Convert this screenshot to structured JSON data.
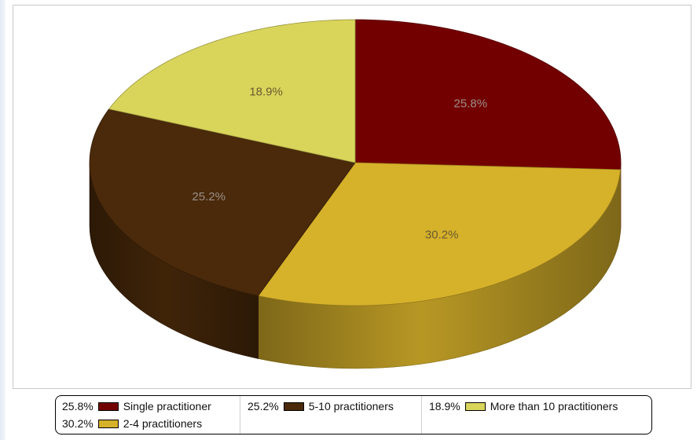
{
  "chart_data": {
    "type": "pie",
    "variant": "3d",
    "title": "",
    "slices": [
      {
        "label": "Single practitioner",
        "value": 25.8,
        "display": "25.8%",
        "color": "#730000"
      },
      {
        "label": "2-4 practitioners",
        "value": 30.2,
        "display": "30.2%",
        "color": "#d6b12a"
      },
      {
        "label": "5-10 practitioners",
        "value": 25.2,
        "display": "25.2%",
        "color": "#4a2a0a"
      },
      {
        "label": "More than 10 practitioners",
        "value": 18.9,
        "display": "18.9%",
        "color": "#d9d55b"
      }
    ],
    "legend_position": "bottom"
  },
  "legend": {
    "columns": [
      [
        {
          "pct": "25.8%",
          "label": "Single practitioner",
          "color": "#730000"
        },
        {
          "pct": "30.2%",
          "label": "2-4 practitioners",
          "color": "#d6b12a"
        }
      ],
      [
        {
          "pct": "25.2%",
          "label": "5-10 practitioners",
          "color": "#4a2a0a"
        }
      ],
      [
        {
          "pct": "18.9%",
          "label": "More than 10 practitioners",
          "color": "#d9d55b"
        }
      ]
    ]
  }
}
